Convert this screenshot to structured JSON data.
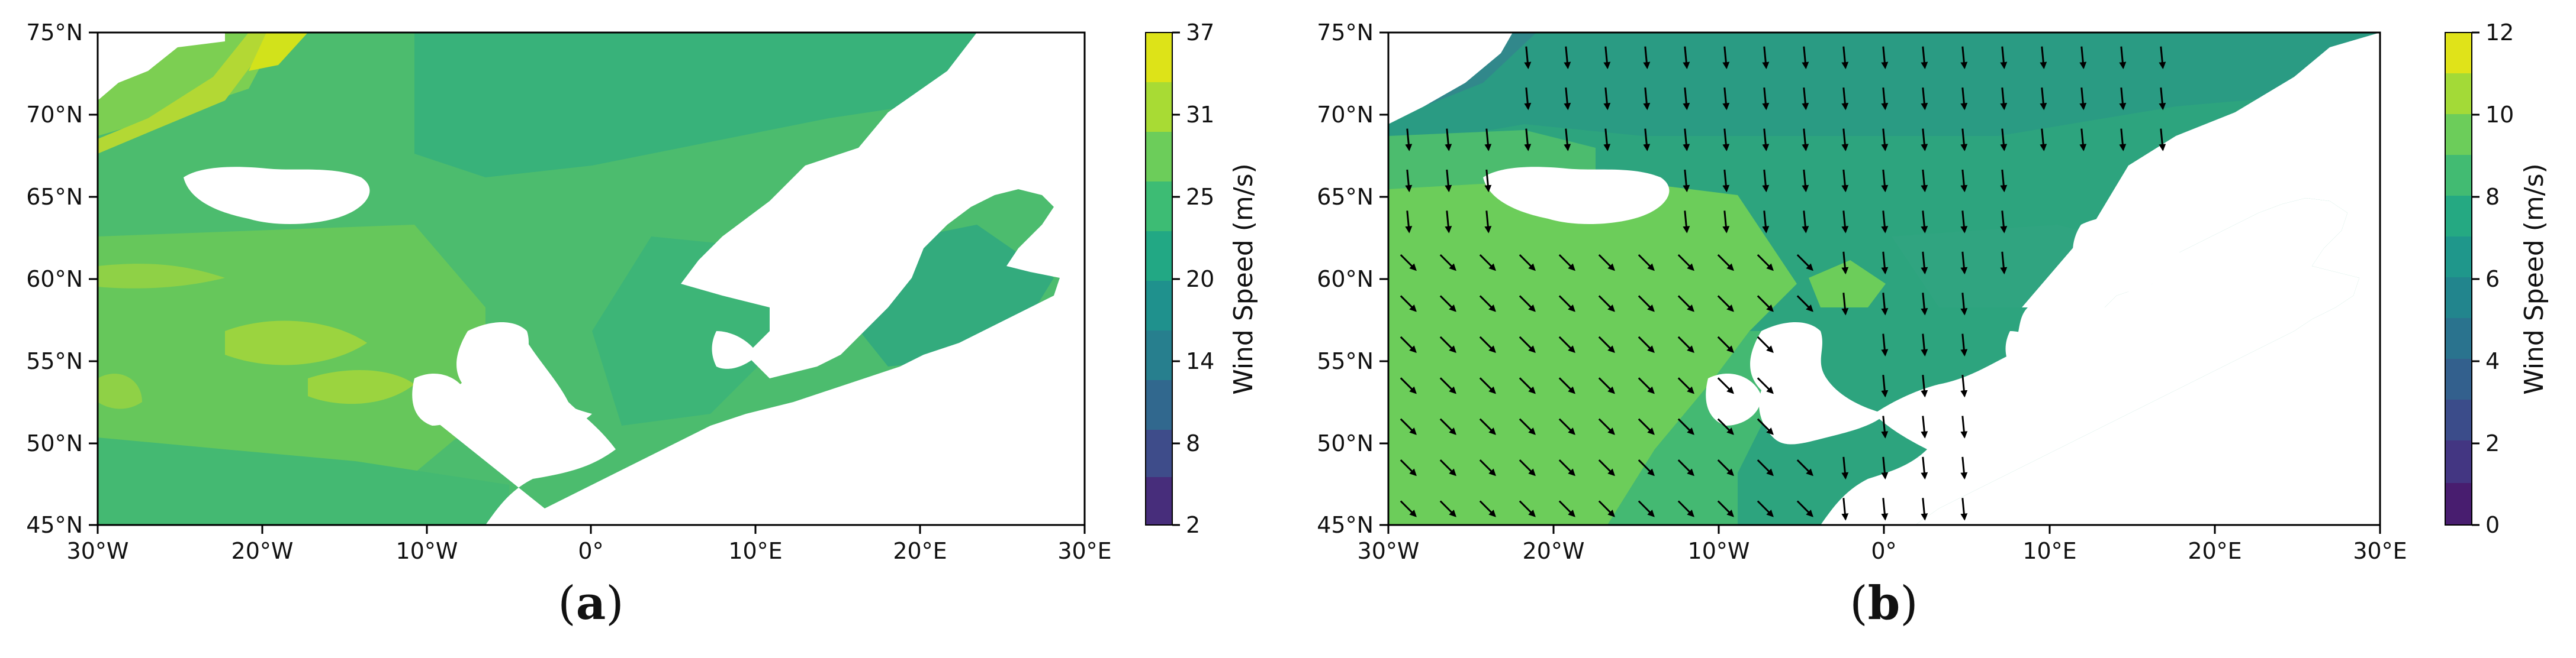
{
  "colors": {
    "viridis": [
      "#440154",
      "#482777",
      "#3e4a89",
      "#31688e",
      "#26828e",
      "#1f9e89",
      "#35b779",
      "#6ece58",
      "#b5de2b",
      "#fde725"
    ],
    "land": "#ffffff",
    "frame": "#000000"
  },
  "panels": [
    {
      "id": "a",
      "caption_open": "(",
      "caption_letter": "a",
      "caption_close": ")",
      "x_ticks": [
        "30°W",
        "20°W",
        "10°W",
        "0°",
        "10°E",
        "20°E",
        "30°E"
      ],
      "y_ticks": [
        "75°N",
        "70°N",
        "65°N",
        "60°N",
        "55°N",
        "50°N",
        "45°N"
      ],
      "colorbar": {
        "label": "Wind Speed (m/s)",
        "ticks": [
          "37",
          "31",
          "25",
          "20",
          "14",
          "8",
          "2"
        ],
        "min": 2,
        "max": 37
      }
    },
    {
      "id": "b",
      "caption_open": "(",
      "caption_letter": "b",
      "caption_close": ")",
      "x_ticks": [
        "30°W",
        "20°W",
        "10°W",
        "0°",
        "10°E",
        "20°E",
        "30°E"
      ],
      "y_ticks": [
        "75°N",
        "70°N",
        "65°N",
        "60°N",
        "55°N",
        "50°N",
        "45°N"
      ],
      "colorbar": {
        "label": "Wind Speed (m/s)",
        "ticks": [
          "12",
          "10",
          "8",
          "6",
          "4",
          "2",
          "0"
        ],
        "min": 0,
        "max": 12
      }
    }
  ],
  "map_extent": {
    "lon": [
      -30,
      30
    ],
    "lat": [
      45,
      75
    ]
  }
}
